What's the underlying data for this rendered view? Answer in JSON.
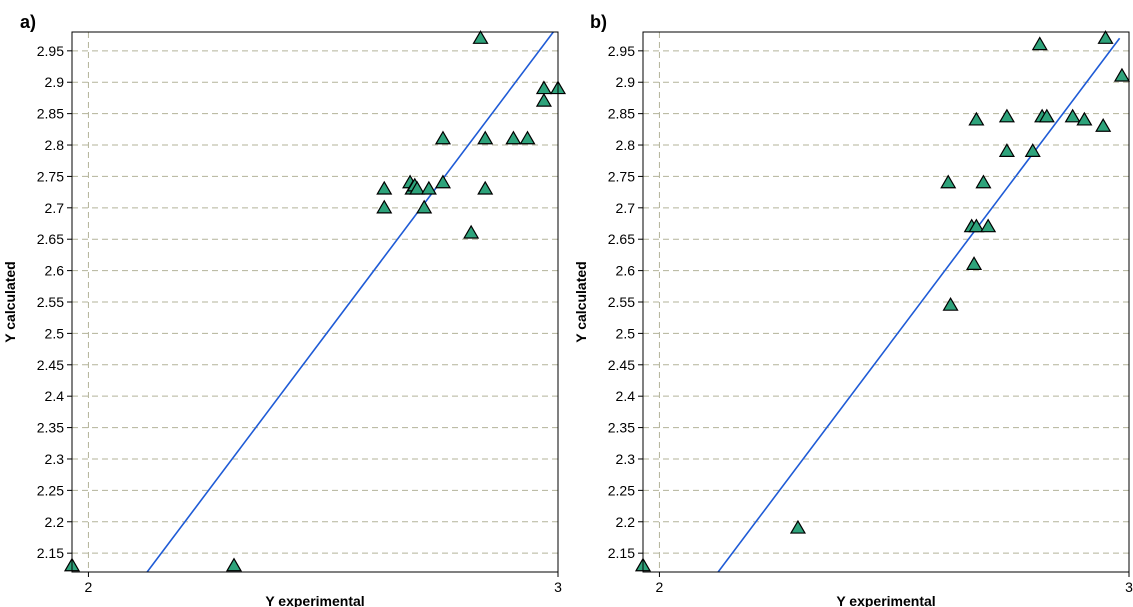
{
  "chart_data": [
    {
      "panel_label": "a)",
      "type": "scatter",
      "xlabel": "Y experimental",
      "ylabel": "Y calculated",
      "xlim": [
        1.965,
        3.0
      ],
      "ylim": [
        2.12,
        2.98
      ],
      "x_ticks": [
        2,
        3
      ],
      "y_ticks": [
        2.15,
        2.2,
        2.25,
        2.3,
        2.35,
        2.4,
        2.45,
        2.5,
        2.55,
        2.6,
        2.65,
        2.7,
        2.75,
        2.8,
        2.85,
        2.9,
        2.95
      ],
      "grid": true,
      "marker": "triangle",
      "marker_color": "#2ea37b",
      "line_color": "#1f5bd6",
      "fit_line": {
        "x": [
          2.125,
          2.99
        ],
        "y": [
          2.12,
          2.98
        ]
      },
      "points": [
        {
          "x": 1.965,
          "y": 2.13
        },
        {
          "x": 2.31,
          "y": 2.13
        },
        {
          "x": 2.63,
          "y": 2.73
        },
        {
          "x": 2.63,
          "y": 2.7
        },
        {
          "x": 2.685,
          "y": 2.74
        },
        {
          "x": 2.69,
          "y": 2.73
        },
        {
          "x": 2.695,
          "y": 2.735
        },
        {
          "x": 2.7,
          "y": 2.73
        },
        {
          "x": 2.715,
          "y": 2.7
        },
        {
          "x": 2.725,
          "y": 2.73
        },
        {
          "x": 2.755,
          "y": 2.81
        },
        {
          "x": 2.755,
          "y": 2.74
        },
        {
          "x": 2.815,
          "y": 2.66
        },
        {
          "x": 2.835,
          "y": 2.97
        },
        {
          "x": 2.845,
          "y": 2.81
        },
        {
          "x": 2.845,
          "y": 2.73
        },
        {
          "x": 2.905,
          "y": 2.81
        },
        {
          "x": 2.935,
          "y": 2.81
        },
        {
          "x": 2.97,
          "y": 2.87
        },
        {
          "x": 2.97,
          "y": 2.89
        },
        {
          "x": 3.0,
          "y": 2.89
        }
      ]
    },
    {
      "panel_label": "b)",
      "type": "scatter",
      "xlabel": "Y experimental",
      "ylabel": "Y calculated",
      "xlim": [
        1.965,
        3.0
      ],
      "ylim": [
        2.12,
        2.98
      ],
      "x_ticks": [
        2,
        3
      ],
      "y_ticks": [
        2.15,
        2.2,
        2.25,
        2.3,
        2.35,
        2.4,
        2.45,
        2.5,
        2.55,
        2.6,
        2.65,
        2.7,
        2.75,
        2.8,
        2.85,
        2.9,
        2.95
      ],
      "grid": true,
      "marker": "triangle",
      "marker_color": "#2ea37b",
      "line_color": "#1f5bd6",
      "fit_line": {
        "x": [
          2.125,
          2.98
        ],
        "y": [
          2.12,
          2.97
        ]
      },
      "points": [
        {
          "x": 1.965,
          "y": 2.13
        },
        {
          "x": 2.295,
          "y": 2.19
        },
        {
          "x": 2.615,
          "y": 2.74
        },
        {
          "x": 2.62,
          "y": 2.545
        },
        {
          "x": 2.665,
          "y": 2.67
        },
        {
          "x": 2.67,
          "y": 2.61
        },
        {
          "x": 2.675,
          "y": 2.67
        },
        {
          "x": 2.675,
          "y": 2.84
        },
        {
          "x": 2.69,
          "y": 2.74
        },
        {
          "x": 2.7,
          "y": 2.67
        },
        {
          "x": 2.74,
          "y": 2.79
        },
        {
          "x": 2.74,
          "y": 2.845
        },
        {
          "x": 2.795,
          "y": 2.79
        },
        {
          "x": 2.81,
          "y": 2.96
        },
        {
          "x": 2.815,
          "y": 2.845
        },
        {
          "x": 2.825,
          "y": 2.845
        },
        {
          "x": 2.88,
          "y": 2.845
        },
        {
          "x": 2.905,
          "y": 2.84
        },
        {
          "x": 2.945,
          "y": 2.83
        },
        {
          "x": 2.95,
          "y": 2.97
        },
        {
          "x": 2.985,
          "y": 2.91
        }
      ]
    }
  ]
}
